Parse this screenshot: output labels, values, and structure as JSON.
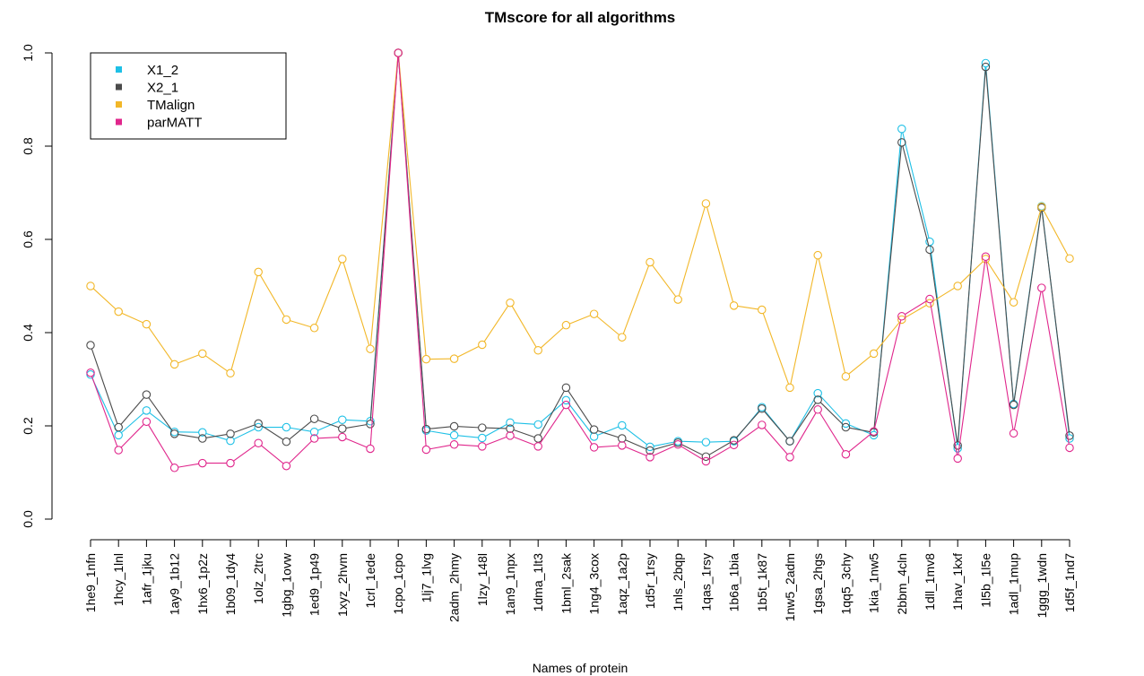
{
  "chart_data": {
    "type": "line",
    "title": "TMscore for all algorithms",
    "xlabel": "Names of protein",
    "ylabel": "",
    "ylim": [
      0,
      1
    ],
    "yticks": [
      "0.0",
      "0.2",
      "0.4",
      "0.6",
      "0.8",
      "1.0"
    ],
    "legend_position": "top-left",
    "categories": [
      "1he9_1nfn",
      "1hcy_1lnl",
      "1afr_1jku",
      "1ay9_1b12",
      "1hx6_1p2z",
      "1b09_1dy4",
      "1olz_2trc",
      "1gbg_1ovw",
      "1ed9_1p49",
      "1xyz_2hvm",
      "1crl_1ede",
      "1cpo_1cpo",
      "1lj7_1lvg",
      "2adm_2hmy",
      "1lzy_148l",
      "1an9_1npx",
      "1dma_1lt3",
      "1bml_2sak",
      "1ng4_3cox",
      "1aqz_1a2p",
      "1d5r_1rsy",
      "1nls_2bqp",
      "1qas_1rsy",
      "1b6a_1bia",
      "1b5t_1k87",
      "1nw5_2adm",
      "1gsa_2hgs",
      "1qq5_3chy",
      "1kia_1nw5",
      "2bbm_4cln",
      "1dll_1mv8",
      "1hav_1kxf",
      "1l5b_1l5e",
      "1adl_1mup",
      "1ggg_1wdn",
      "1d5f_1nd7"
    ],
    "series": [
      {
        "name": "X1_2",
        "color": "#1ec0e6",
        "values": [
          0.31,
          0.18,
          0.233,
          0.187,
          0.186,
          0.168,
          0.197,
          0.197,
          0.187,
          0.213,
          0.21,
          1.0,
          0.19,
          0.18,
          0.174,
          0.207,
          0.203,
          0.255,
          0.177,
          0.201,
          0.155,
          0.167,
          0.165,
          0.167,
          0.24,
          0.167,
          0.27,
          0.205,
          0.18,
          0.837,
          0.595,
          0.152,
          0.978,
          0.247,
          0.671,
          0.173
        ]
      },
      {
        "name": "X2_1",
        "color": "#4b4b4b",
        "values": [
          0.373,
          0.197,
          0.267,
          0.183,
          0.173,
          0.183,
          0.205,
          0.166,
          0.215,
          0.194,
          0.204,
          1.0,
          0.193,
          0.199,
          0.196,
          0.194,
          0.173,
          0.282,
          0.192,
          0.173,
          0.147,
          0.164,
          0.134,
          0.169,
          0.237,
          0.167,
          0.256,
          0.197,
          0.186,
          0.808,
          0.578,
          0.158,
          0.97,
          0.245,
          0.668,
          0.179
        ]
      },
      {
        "name": "TMalign",
        "color": "#f2b728",
        "values": [
          0.5,
          0.445,
          0.418,
          0.332,
          0.355,
          0.313,
          0.53,
          0.428,
          0.41,
          0.558,
          0.365,
          1.0,
          0.343,
          0.344,
          0.374,
          0.464,
          0.362,
          0.416,
          0.44,
          0.39,
          0.551,
          0.471,
          0.677,
          0.458,
          0.449,
          0.282,
          0.566,
          0.306,
          0.355,
          0.428,
          0.463,
          0.5,
          0.558,
          0.465,
          0.67,
          0.559
        ]
      },
      {
        "name": "parMATT",
        "color": "#e0268c",
        "values": [
          0.314,
          0.148,
          0.209,
          0.11,
          0.12,
          0.12,
          0.163,
          0.114,
          0.173,
          0.176,
          0.151,
          1.0,
          0.149,
          0.16,
          0.156,
          0.179,
          0.156,
          0.245,
          0.154,
          0.158,
          0.133,
          0.16,
          0.124,
          0.159,
          0.202,
          0.133,
          0.235,
          0.139,
          0.188,
          0.435,
          0.472,
          0.13,
          0.563,
          0.184,
          0.496,
          0.153
        ]
      }
    ]
  }
}
